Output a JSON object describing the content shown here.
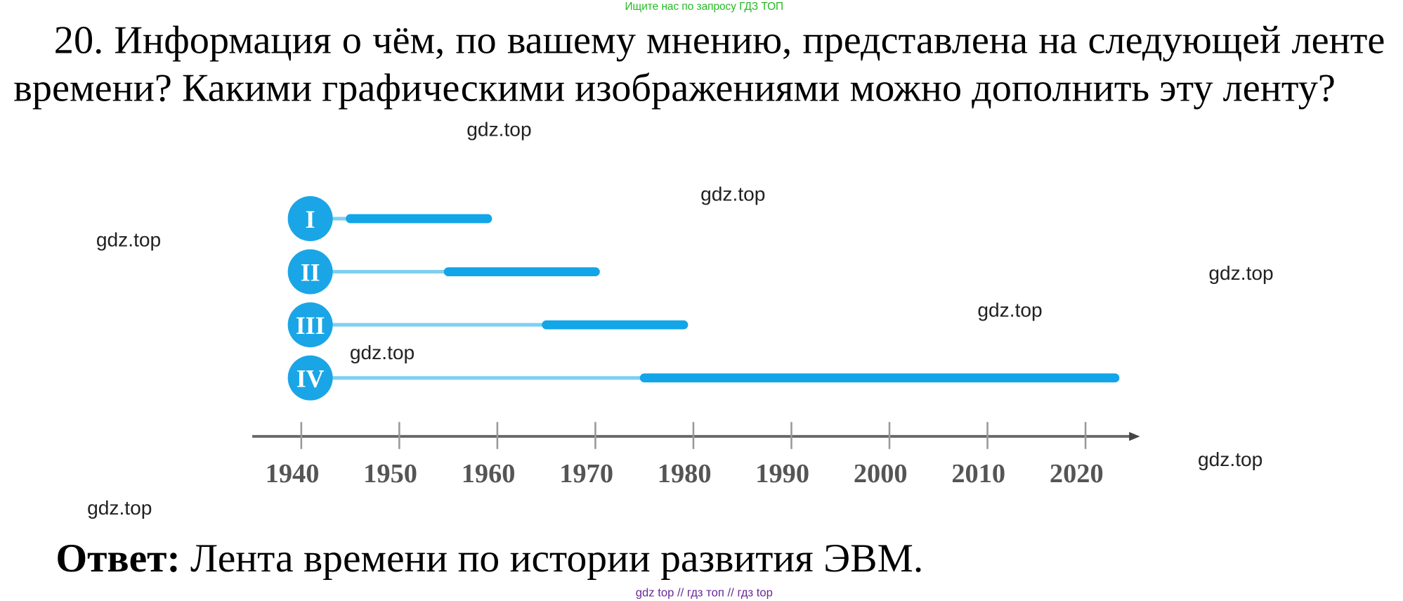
{
  "header": {
    "search_hint": "Ищите нас по запросу ГДЗ ТОП"
  },
  "question": {
    "text": "20. Информация о чём, по вашему мнению, представлена на следующей ленте времени? Какими графическими изображениями можно дополнить эту ленту?"
  },
  "timeline": {
    "xlim": [
      1935,
      2025
    ],
    "xticks": [
      1940,
      1950,
      1960,
      1970,
      1980,
      1990,
      2000,
      2010,
      2020
    ],
    "rows": [
      {
        "label": "I",
        "start": 1945,
        "end": 1959
      },
      {
        "label": "II",
        "start": 1955,
        "end": 1970
      },
      {
        "label": "III",
        "start": 1965,
        "end": 1979
      },
      {
        "label": "IV",
        "start": 1975,
        "end": 2023
      }
    ]
  },
  "watermarks": [
    "gdz.top",
    "gdz.top",
    "gdz.top",
    "gdz.top",
    "gdz.top",
    "gdz.top",
    "gdz.top",
    "gdz.top"
  ],
  "answer": {
    "label": "Ответ:",
    "text": "Лента времени по истории развития ЭВМ."
  },
  "footer": {
    "links": [
      "gdz top",
      "гдз топ",
      "гдз top"
    ],
    "separator": "//"
  }
}
